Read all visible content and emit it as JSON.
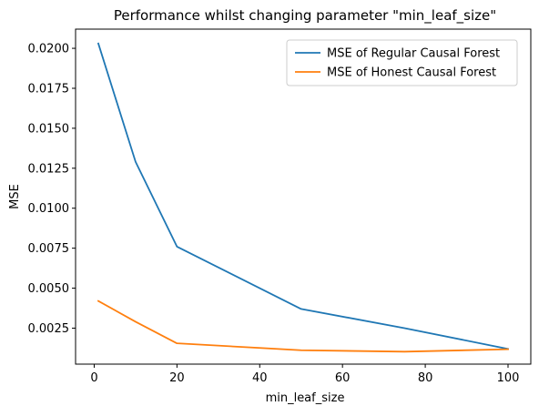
{
  "chart_data": {
    "type": "line",
    "title": "Performance whilst changing parameter \"min_leaf_size\"",
    "xlabel": "min_leaf_size",
    "ylabel": "MSE",
    "xlim": [
      -4.5,
      105.5
    ],
    "ylim": [
      0.00025,
      0.0212
    ],
    "xticks": [
      0,
      20,
      40,
      60,
      80,
      100
    ],
    "xtick_labels": [
      "0",
      "20",
      "40",
      "60",
      "80",
      "100"
    ],
    "yticks": [
      0.0025,
      0.005,
      0.0075,
      0.01,
      0.0125,
      0.015,
      0.0175,
      0.02
    ],
    "ytick_labels": [
      "0.0025",
      "0.0050",
      "0.0075",
      "0.0100",
      "0.0125",
      "0.0150",
      "0.0175",
      "0.0200"
    ],
    "grid": false,
    "legend_position": "top-right",
    "series": [
      {
        "name": "MSE of Regular Causal Forest",
        "color": "#1f77b4",
        "x": [
          1,
          10,
          20,
          50,
          75,
          100
        ],
        "y": [
          0.0203,
          0.0129,
          0.0076,
          0.0037,
          0.0025,
          0.0012
        ]
      },
      {
        "name": "MSE of Honest Causal Forest",
        "color": "#ff7f0e",
        "x": [
          1,
          10,
          20,
          50,
          75,
          100
        ],
        "y": [
          0.0042,
          0.0029,
          0.00155,
          0.00112,
          0.00103,
          0.00118
        ]
      }
    ]
  }
}
